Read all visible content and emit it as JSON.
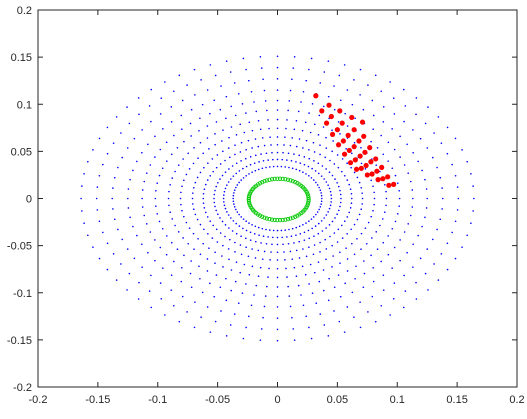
{
  "chart_data": {
    "type": "scatter",
    "title": "",
    "xlabel": "",
    "ylabel": "",
    "xlim": [
      -0.2,
      0.2
    ],
    "ylim": [
      -0.2,
      0.2
    ],
    "xticks": [
      -0.2,
      -0.15,
      -0.1,
      -0.05,
      0,
      0.05,
      0.1,
      0.15,
      0.2
    ],
    "yticks": [
      -0.2,
      -0.15,
      -0.1,
      -0.05,
      0,
      0.05,
      0.1,
      0.15,
      0.2
    ],
    "xtick_labels": [
      "-0.2",
      "-0.15",
      "-0.1",
      "-0.05",
      "0",
      "0.05",
      "0.1",
      "0.15",
      "0.2"
    ],
    "ytick_labels": [
      "-0.2",
      "-0.15",
      "-0.1",
      "-0.05",
      "0",
      "0.05",
      "0.1",
      "0.15",
      "0.2"
    ],
    "grid": false,
    "box": true,
    "series": [
      {
        "id": "blue-grid",
        "marker": "dot",
        "color": "#0000ff",
        "generator": {
          "kind": "polar-grid",
          "center": [
            0,
            0
          ],
          "radii": [
            0.037,
            0.045,
            0.053,
            0.062,
            0.071,
            0.081,
            0.091,
            0.102,
            0.113,
            0.125,
            0.138,
            0.151,
            0.164
          ],
          "angles_deg": [
            0,
            5,
            10,
            15,
            20,
            25,
            30,
            35,
            40,
            45,
            50,
            55,
            60,
            65,
            70,
            75,
            80,
            85,
            90,
            95,
            100,
            105,
            110,
            115,
            120,
            125,
            130,
            135,
            140,
            145,
            150,
            155,
            160,
            165,
            170,
            175,
            180,
            185,
            190,
            195,
            200,
            205,
            210,
            215,
            220,
            225,
            230,
            235,
            240,
            245,
            250,
            255,
            260,
            265,
            270,
            275,
            280,
            285,
            290,
            295,
            300,
            305,
            310,
            315,
            320,
            325,
            330,
            335,
            340,
            345,
            350,
            355
          ],
          "note": ""
        }
      },
      {
        "id": "red-grid",
        "marker": "filled-circle",
        "color": "#ff0000",
        "points": [
          [
            0.032,
            0.109
          ],
          [
            0.043,
            0.099
          ],
          [
            0.052,
            0.093
          ],
          [
            0.062,
            0.086
          ],
          [
            0.071,
            0.081
          ],
          [
            0.037,
            0.093
          ],
          [
            0.045,
            0.087
          ],
          [
            0.054,
            0.08
          ],
          [
            0.064,
            0.073
          ],
          [
            0.072,
            0.066
          ],
          [
            0.041,
            0.08
          ],
          [
            0.05,
            0.073
          ],
          [
            0.059,
            0.067
          ],
          [
            0.068,
            0.061
          ],
          [
            0.077,
            0.054
          ],
          [
            0.046,
            0.068
          ],
          [
            0.055,
            0.061
          ],
          [
            0.064,
            0.055
          ],
          [
            0.073,
            0.049
          ],
          [
            0.082,
            0.042
          ],
          [
            0.051,
            0.057
          ],
          [
            0.06,
            0.051
          ],
          [
            0.069,
            0.045
          ],
          [
            0.078,
            0.039
          ],
          [
            0.087,
            0.033
          ],
          [
            0.056,
            0.047
          ],
          [
            0.065,
            0.041
          ],
          [
            0.074,
            0.035
          ],
          [
            0.083,
            0.029
          ],
          [
            0.092,
            0.023
          ],
          [
            0.061,
            0.038
          ],
          [
            0.07,
            0.032
          ],
          [
            0.079,
            0.026
          ],
          [
            0.088,
            0.021
          ],
          [
            0.097,
            0.015
          ],
          [
            0.066,
            0.031
          ],
          [
            0.075,
            0.025
          ],
          [
            0.084,
            0.02
          ],
          [
            0.093,
            0.014
          ]
        ]
      },
      {
        "id": "green-ring",
        "marker": "ring",
        "color": "#00c800",
        "generator": {
          "kind": "ellipse",
          "center": [
            0.001,
            -0.001
          ],
          "rx": 0.025,
          "ry": 0.022,
          "count": 70
        }
      }
    ]
  }
}
